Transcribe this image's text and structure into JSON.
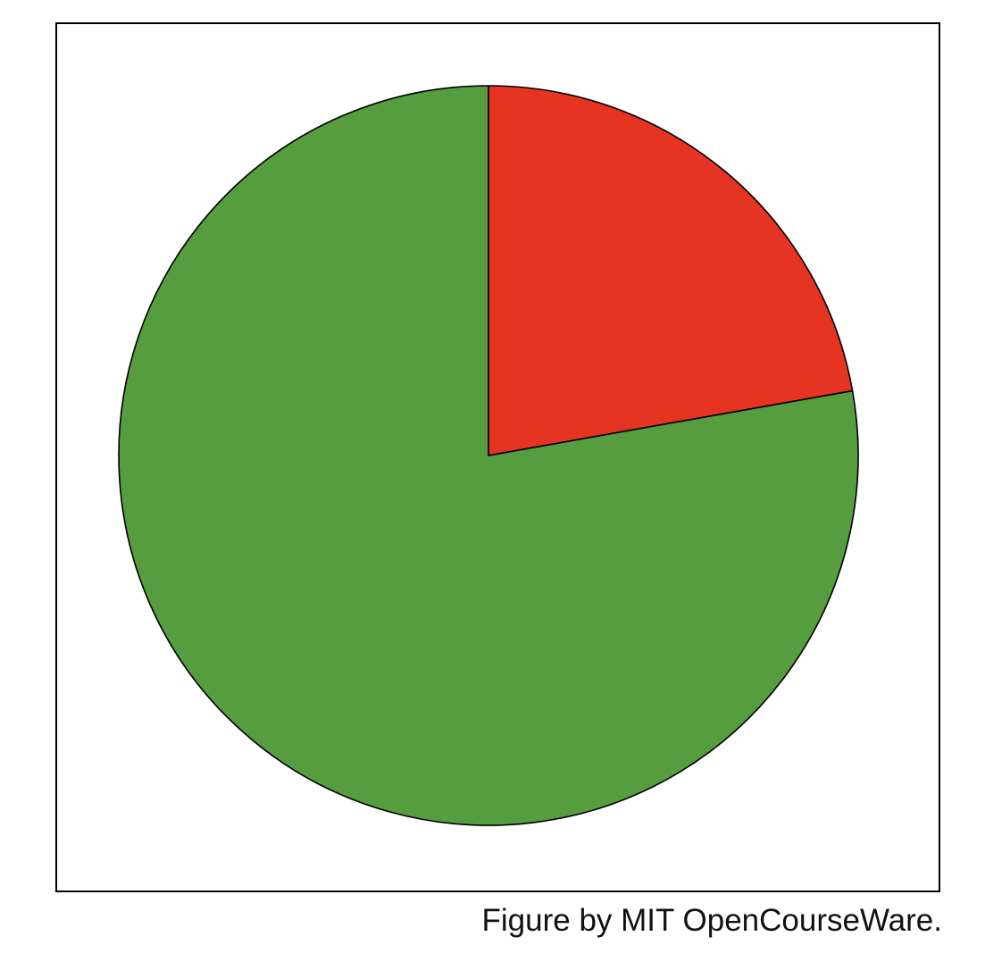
{
  "chart_data": {
    "type": "pie",
    "title": "",
    "start_angle_deg": 0,
    "direction": "clockwise",
    "slices": [
      {
        "value": 0.222,
        "color": "#e63422"
      },
      {
        "value": 0.778,
        "color": "#559d3e"
      }
    ],
    "legend": "none",
    "frame": true
  },
  "caption": "Figure by MIT OpenCourseWare."
}
